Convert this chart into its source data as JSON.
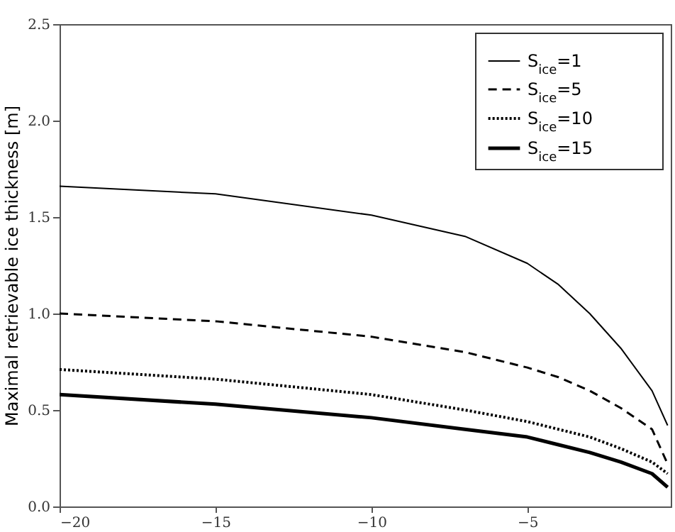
{
  "chart_data": {
    "type": "line",
    "ylabel": "Maximal retrievable ice thickness [m]",
    "xlim": [
      -20,
      -0.4
    ],
    "ylim": [
      0,
      2.5
    ],
    "xticks": [
      {
        "value": -20,
        "label": "−20"
      },
      {
        "value": -15,
        "label": "−15"
      },
      {
        "value": -10,
        "label": "−10"
      },
      {
        "value": -5,
        "label": "−5"
      }
    ],
    "yticks": [
      {
        "value": 0,
        "label": "0.0"
      },
      {
        "value": 0.5,
        "label": "0.5"
      },
      {
        "value": 1,
        "label": "1.0"
      },
      {
        "value": 1.5,
        "label": "1.5"
      },
      {
        "value": 2,
        "label": "2.0"
      },
      {
        "value": 2.5,
        "label": "2.5"
      }
    ],
    "x": [
      -20,
      -15,
      -10,
      -7,
      -5,
      -4,
      -3,
      -2,
      -1,
      -0.5
    ],
    "series": [
      {
        "name": "S$_{ice}$=1",
        "color": "#000000",
        "line_style": "solid",
        "values": [
          1.66,
          1.62,
          1.51,
          1.4,
          1.26,
          1.15,
          1.0,
          0.82,
          0.6,
          0.42
        ]
      },
      {
        "name": "S$_{ice}$=5",
        "color": "#000000",
        "line_style": "dashed",
        "values": [
          1.0,
          0.96,
          0.88,
          0.8,
          0.72,
          0.67,
          0.6,
          0.51,
          0.4,
          0.22
        ]
      },
      {
        "name": "S$_{ice}$=10",
        "color": "#000000",
        "line_style": "dotted",
        "values": [
          0.71,
          0.66,
          0.58,
          0.5,
          0.44,
          0.4,
          0.36,
          0.3,
          0.23,
          0.17
        ]
      },
      {
        "name": "S$_{ice}$=15",
        "color": "#000000",
        "line_style": "solid",
        "values": [
          0.58,
          0.53,
          0.46,
          0.4,
          0.36,
          0.32,
          0.28,
          0.23,
          0.17,
          0.1
        ]
      }
    ],
    "grid": false,
    "legend": "top right"
  }
}
